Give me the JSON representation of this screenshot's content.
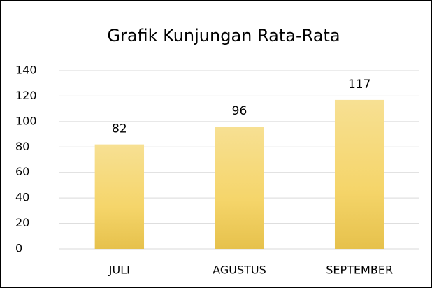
{
  "chart_data": {
    "type": "bar",
    "title": "Grafik Kunjungan Rata-Rata",
    "categories": [
      "JULI",
      "AGUSTUS",
      "SEPTEMBER"
    ],
    "values": [
      82,
      96,
      117
    ],
    "color": "#f5d56a",
    "ylim": [
      0,
      140
    ],
    "yticks": [
      0,
      20,
      40,
      60,
      80,
      100,
      120,
      140
    ],
    "grid": true
  }
}
